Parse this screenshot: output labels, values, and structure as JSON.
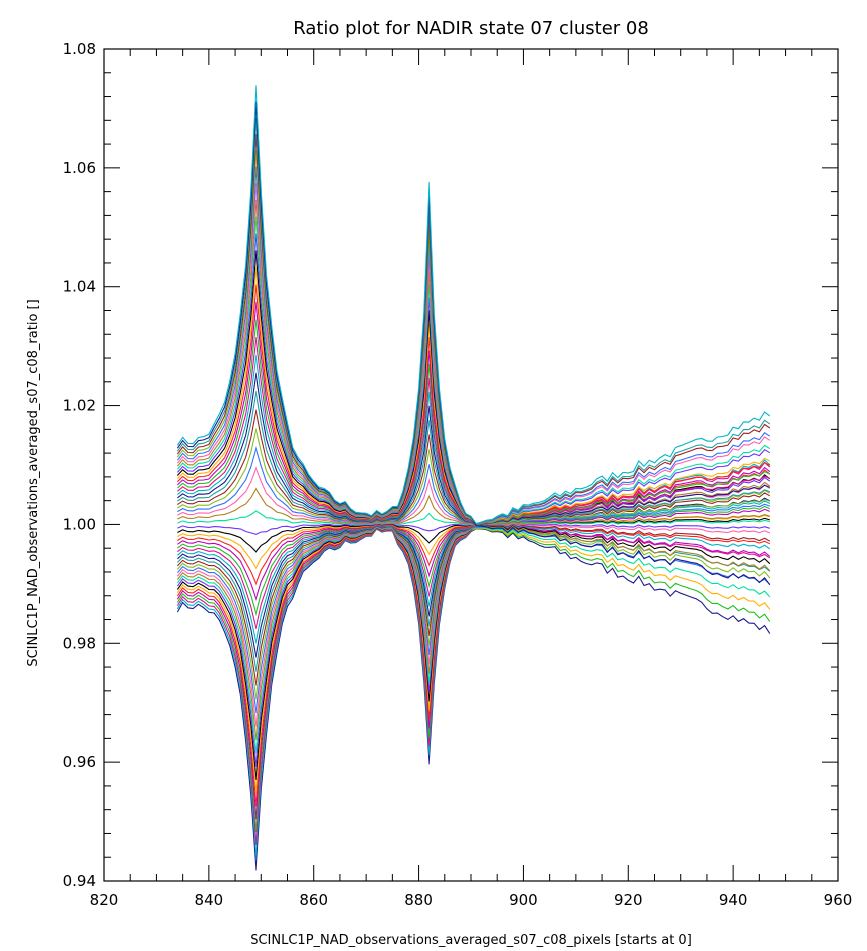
{
  "chart_data": {
    "type": "line",
    "title": "Ratio plot for NADIR state 07 cluster 08",
    "xlabel": "SCINLC1P_NAD_observations_averaged_s07_c08_pixels [starts at 0]",
    "ylabel": "SCINLC1P_NAD_observations_averaged_s07_c08_ratio []",
    "xlim": [
      820,
      960
    ],
    "ylim": [
      0.94,
      1.08
    ],
    "x_ticks": [
      "820",
      "840",
      "860",
      "880",
      "900",
      "920",
      "940",
      "960"
    ],
    "y_ticks": [
      "0.94",
      "0.96",
      "0.98",
      "1.00",
      "1.02",
      "1.04",
      "1.06",
      "1.08"
    ],
    "grid": false,
    "x_range_of_series": [
      834,
      947
    ],
    "series_count": 50,
    "features": {
      "peak_1": {
        "x": 849,
        "max": 1.065,
        "min": 0.95
      },
      "peak_2": {
        "x": 882,
        "max": 1.057,
        "min": 0.959
      },
      "crossing_points_near_ratio_1": [
        875,
        890
      ],
      "right_edge": {
        "x": 947,
        "max": 1.018,
        "min": 0.985
      },
      "left_edge": {
        "x": 834,
        "max": 1.018,
        "min": 0.982
      }
    },
    "colors": [
      "#1a1a8c",
      "#00b4c8",
      "#e0108c",
      "#20c020",
      "#c000c0",
      "#ff2020",
      "#ffb000",
      "#000000",
      "#7030ff",
      "#00e0a0",
      "#b08020",
      "#ff60b0",
      "#3070ff",
      "#80c020",
      "#a02020",
      "#20a0a0"
    ]
  }
}
